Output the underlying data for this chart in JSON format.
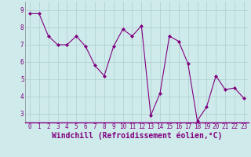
{
  "x": [
    0,
    1,
    2,
    3,
    4,
    5,
    6,
    7,
    8,
    9,
    10,
    11,
    12,
    13,
    14,
    15,
    16,
    17,
    18,
    19,
    20,
    21,
    22,
    23
  ],
  "y": [
    8.8,
    8.8,
    7.5,
    7.0,
    7.0,
    7.5,
    6.9,
    5.8,
    5.2,
    6.9,
    7.9,
    7.5,
    8.1,
    2.9,
    4.2,
    7.5,
    7.2,
    5.9,
    2.6,
    3.4,
    5.2,
    4.4,
    4.5,
    3.9
  ],
  "line_color": "#800080",
  "marker": "D",
  "marker_size": 2,
  "xlabel": "Windchill (Refroidissement éolien,°C)",
  "xlabel_fontsize": 7,
  "bg_color": "#ceeaea",
  "grid_color": "#aecece",
  "tick_color": "#800080",
  "ylim": [
    2.5,
    9.5
  ],
  "xlim": [
    -0.5,
    23.5
  ],
  "yticks": [
    3,
    4,
    5,
    6,
    7,
    8,
    9
  ],
  "xticks": [
    0,
    1,
    2,
    3,
    4,
    5,
    6,
    7,
    8,
    9,
    10,
    11,
    12,
    13,
    14,
    15,
    16,
    17,
    18,
    19,
    20,
    21,
    22,
    23
  ],
  "tick_fontsize": 5.5,
  "spine_color": "#888888"
}
